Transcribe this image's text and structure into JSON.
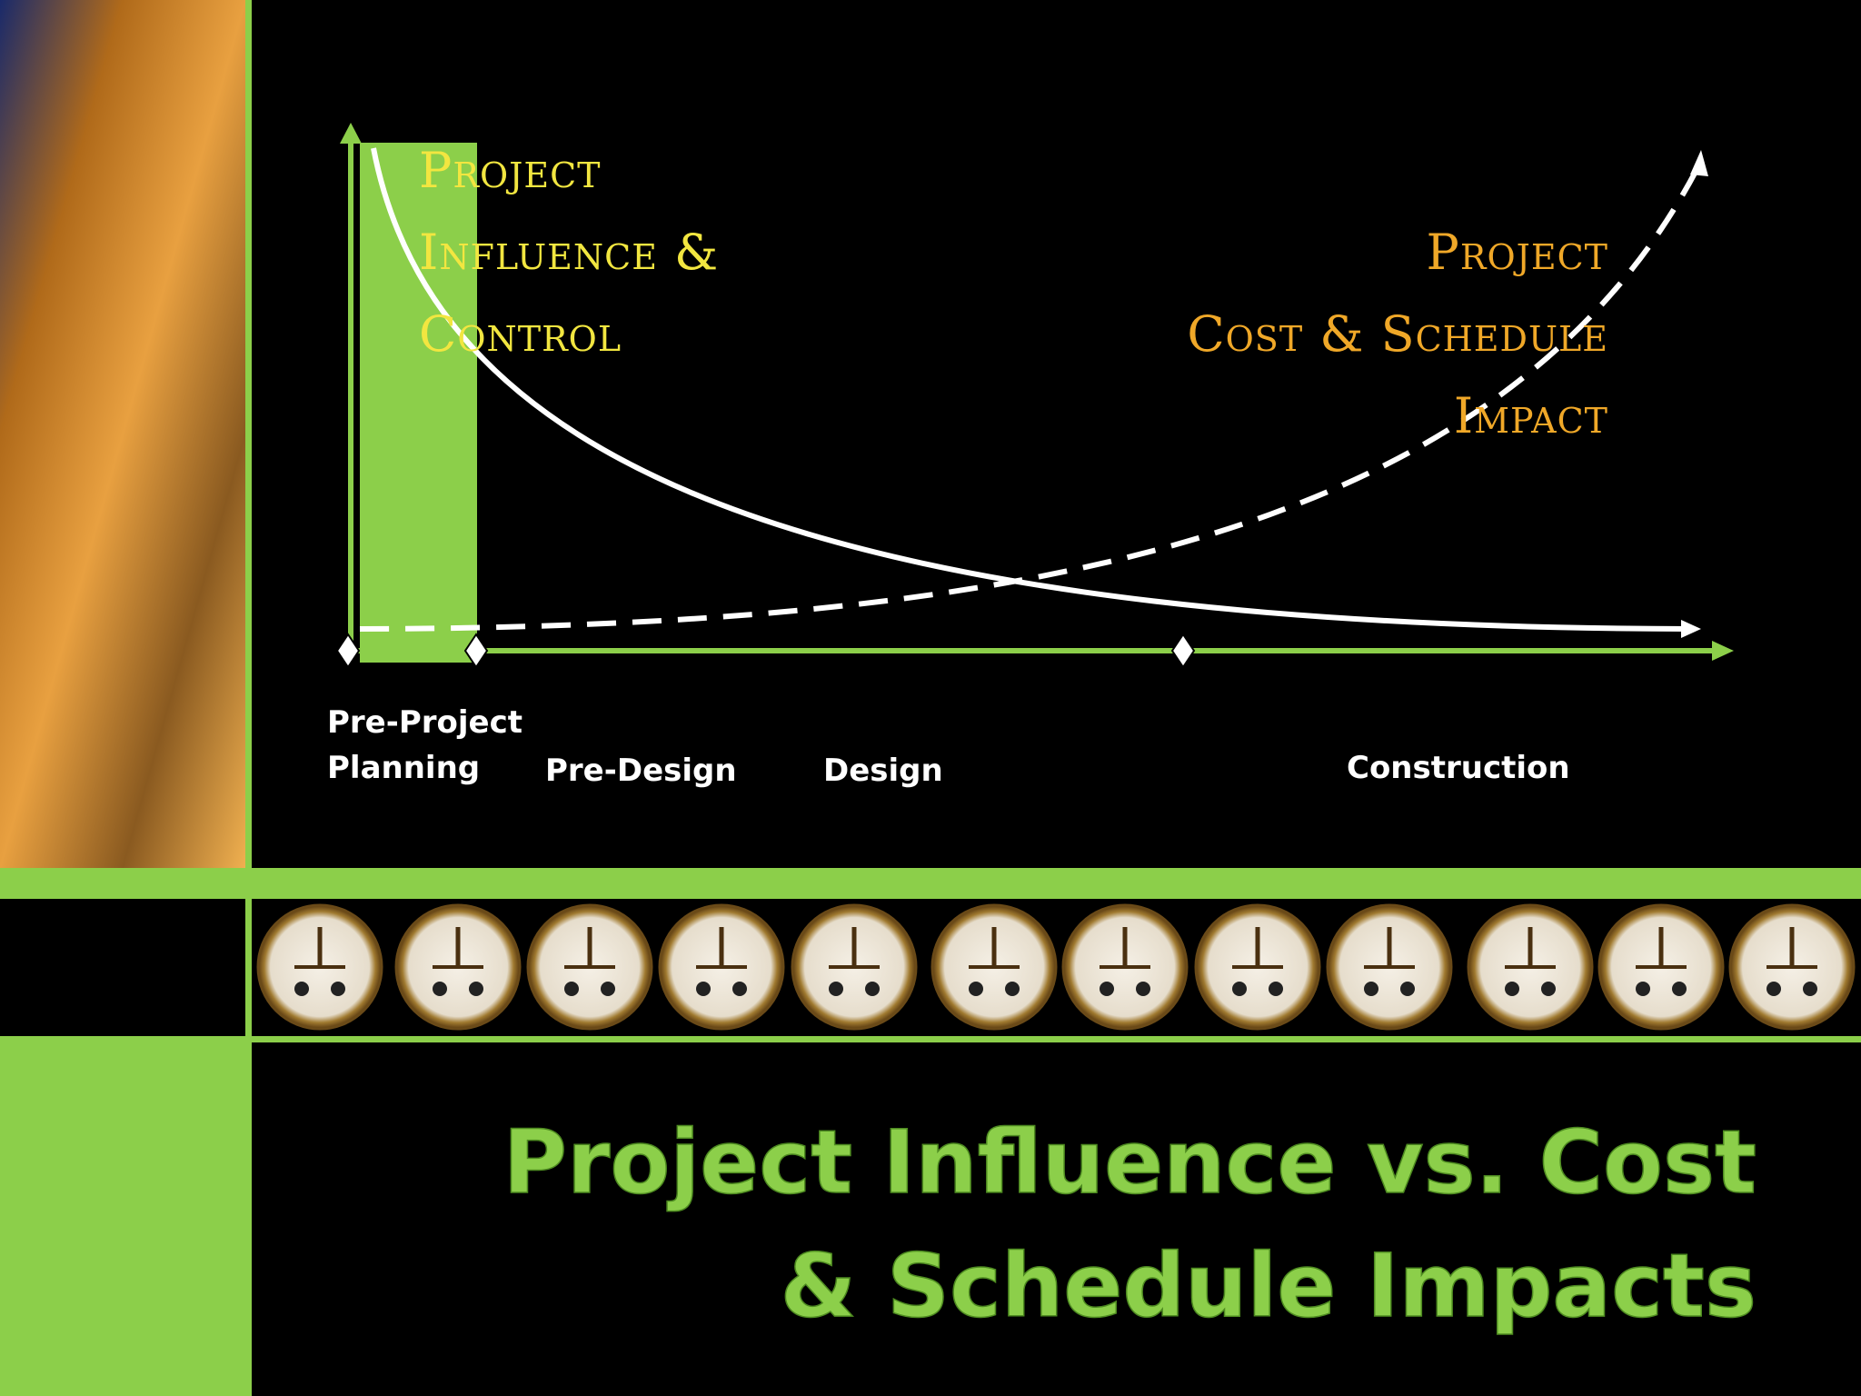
{
  "influence_label": [
    "Project",
    "Influence &",
    "Control"
  ],
  "impact_label": [
    "Project",
    "Cost & Schedule",
    "Impact"
  ],
  "phases": [
    "Pre-Project Planning",
    "Pre-Design",
    "Design",
    "Construction"
  ],
  "title": [
    "Project Influence vs. Cost",
    "& Schedule Impacts"
  ]
}
